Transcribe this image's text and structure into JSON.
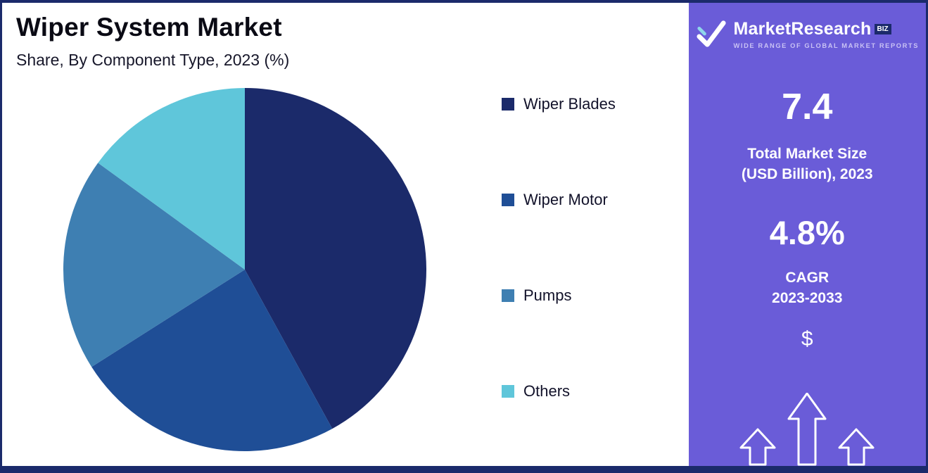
{
  "header": {
    "title": "Wiper System Market",
    "subtitle": "Share, By Component Type, 2023 (%)"
  },
  "chart_data": {
    "type": "pie",
    "title": "Wiper System Market Share, By Component Type, 2023 (%)",
    "labels": [
      "Wiper Blades",
      "Wiper Motor",
      "Pumps",
      "Others"
    ],
    "values": [
      42,
      24,
      19,
      15
    ],
    "unit": "%",
    "colors": [
      "#1b2a6a",
      "#1f4e96",
      "#3e7fb2",
      "#5fc6da"
    ],
    "start_angle_deg": 0,
    "direction": "clockwise",
    "legend_position": "right"
  },
  "sidebar": {
    "background_color": "#6a5cd8",
    "logo": {
      "brand": "MarketResearch",
      "suffix": "BIZ",
      "suffix_box_color": "#1b2a6b",
      "tagline": "WIDE RANGE OF GLOBAL MARKET REPORTS"
    },
    "market_size": {
      "value": "7.4",
      "label_line1": "Total Market Size",
      "label_line2": "(USD Billion), 2023"
    },
    "cagr": {
      "value": "4.8%",
      "label_line1": "CAGR",
      "label_line2": "2023-2033"
    },
    "currency_symbol": "$"
  },
  "frame_color": "#1b2a6b"
}
